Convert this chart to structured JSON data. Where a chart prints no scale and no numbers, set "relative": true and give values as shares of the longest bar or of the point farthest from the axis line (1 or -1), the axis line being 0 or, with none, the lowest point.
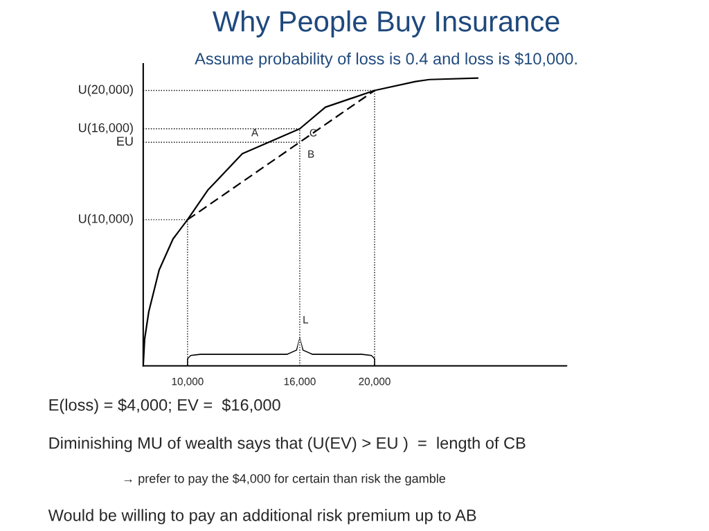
{
  "chart_data": {
    "type": "line",
    "relative": true,
    "title": "Why People Buy Insurance",
    "subtitle": "Assume probability of loss is 0.4 and loss is $10,000.",
    "xlim": [
      7630,
      30260
    ],
    "xticks": [
      {
        "value": 10000,
        "label": "10,000"
      },
      {
        "value": 16000,
        "label": "16,000"
      },
      {
        "value": 20000,
        "label": "20,000"
      }
    ],
    "grid": false,
    "marker": "none",
    "series": [
      {
        "color": "#000000",
        "line_style": "solid",
        "x": [
          7630,
          7704,
          7926,
          8481,
          9222,
          10000,
          11074,
          12926,
          16000,
          17370,
          20000,
          22185,
          22926,
          25519
        ],
        "values": [
          0,
          0.092,
          0.188,
          0.333,
          0.441,
          0.508,
          0.61,
          0.737,
          0.824,
          0.899,
          0.957,
          0.988,
          0.995,
          1.0
        ]
      },
      {
        "color": "#000000",
        "line_style": "dashed",
        "x": [
          10000,
          20000
        ],
        "values": [
          0.508,
          0.957
        ]
      },
      {
        "color": "#000000",
        "line_style": "dotted",
        "x": [
          7630,
          20000,
          20000
        ],
        "values": [
          0.957,
          0.957,
          0
        ]
      },
      {
        "color": "#000000",
        "line_style": "dotted",
        "x": [
          7630,
          16000,
          16000
        ],
        "values": [
          0.824,
          0.824,
          0
        ]
      },
      {
        "color": "#000000",
        "line_style": "dotted",
        "x": [
          7630,
          16000
        ],
        "values": [
          0.777,
          0.777
        ]
      },
      {
        "color": "#000000",
        "line_style": "dotted",
        "x": [
          7630,
          10000,
          10000
        ],
        "values": [
          0.508,
          0.508,
          0
        ]
      }
    ],
    "annotations": [
      {
        "text": "A",
        "x": 14300,
        "y": 0.777
      },
      {
        "text": "B",
        "x": 16000,
        "y": 0.777
      },
      {
        "text": "C",
        "x": 16000,
        "y": 0.824
      },
      {
        "text": "L",
        "x": 16000,
        "y": 0.1
      },
      {
        "text": "U(20,000)",
        "x": 7630,
        "y": 0.957
      },
      {
        "text": "U(16,000)",
        "x": 7630,
        "y": 0.824
      },
      {
        "text": "EU",
        "x": 7630,
        "y": 0.777
      },
      {
        "text": "U(10,000)",
        "x": 7630,
        "y": 0.508
      },
      "E(loss) = $4,000; EV =  $16,000",
      "Diminishing MU of wealth says that (U(EV) > EU )  =  length of CB",
      "→ prefer to pay the $4,000 for certain than risk the gamble",
      "Would be willing to pay an additional risk premium up to AB"
    ]
  }
}
